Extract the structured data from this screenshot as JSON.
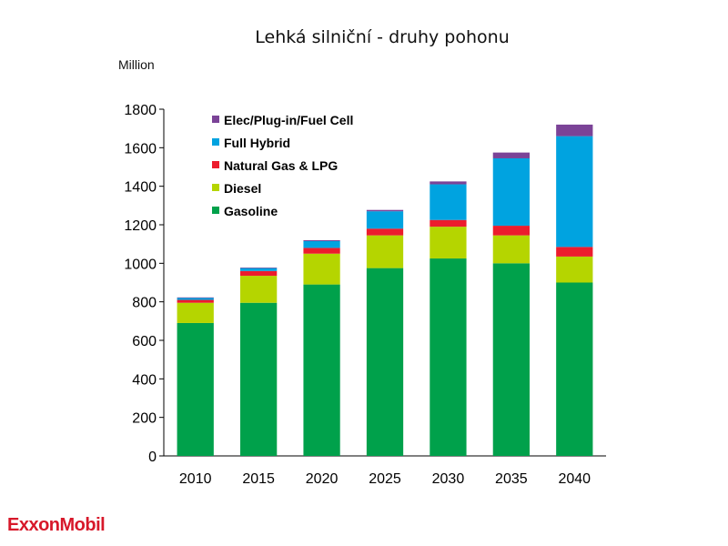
{
  "title": "Lehká silniční - druhy pohonu",
  "unit_label": "Million",
  "brand": {
    "logo_text": "ExxonMobil",
    "color": "#d7182a"
  },
  "chart_data": {
    "type": "bar",
    "stacked": true,
    "title": "Lehká silniční - druhy pohonu",
    "ylabel": "Million",
    "xlabel": "",
    "ylim": [
      0,
      1800
    ],
    "yticks": [
      0,
      200,
      400,
      600,
      800,
      1000,
      1200,
      1400,
      1600,
      1800
    ],
    "categories": [
      "2010",
      "2015",
      "2020",
      "2025",
      "2030",
      "2035",
      "2040"
    ],
    "series": [
      {
        "name": "Gasoline",
        "color": "#00a14b",
        "values": [
          690,
          795,
          890,
          975,
          1025,
          1000,
          900
        ]
      },
      {
        "name": "Diesel",
        "color": "#b5d500",
        "values": [
          105,
          140,
          160,
          170,
          165,
          145,
          135
        ]
      },
      {
        "name": "Natural Gas & LPG",
        "color": "#ec1c2d",
        "values": [
          15,
          25,
          30,
          35,
          35,
          50,
          50
        ]
      },
      {
        "name": "Full Hybrid",
        "color": "#00a3e0",
        "values": [
          10,
          15,
          35,
          90,
          185,
          350,
          575
        ]
      },
      {
        "name": "Elec/Plug-in/Fuel Cell",
        "color": "#7b4397",
        "values": [
          3,
          3,
          5,
          7,
          15,
          30,
          60
        ]
      }
    ],
    "legend": {
      "placement": "top-left",
      "order": [
        "Elec/Plug-in/Fuel Cell",
        "Full Hybrid",
        "Natural Gas & LPG",
        "Diesel",
        "Gasoline"
      ]
    },
    "grid": false
  }
}
